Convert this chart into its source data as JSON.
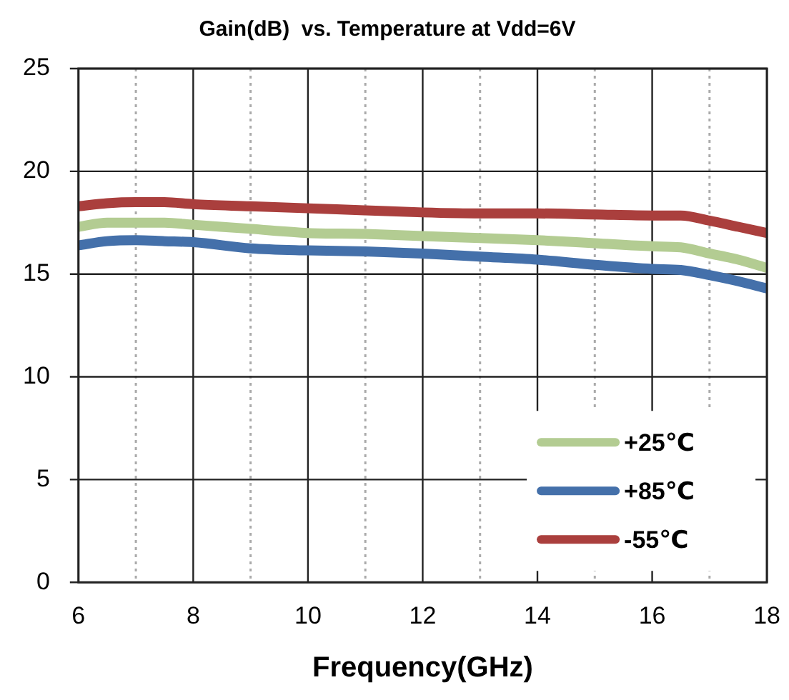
{
  "chart_data": {
    "type": "line",
    "title": "Gain(dB)  vs. Temperature at Vdd=6V",
    "xlabel": "Frequency(GHz)",
    "x": [
      6,
      6.5,
      7,
      7.5,
      8,
      9,
      10,
      11,
      12,
      13,
      14,
      15,
      16,
      16.5,
      17,
      17.5,
      18
    ],
    "series": [
      {
        "name": "+25℃",
        "color": "#b3cc92",
        "values": [
          17.3,
          17.5,
          17.5,
          17.5,
          17.4,
          17.2,
          17.0,
          16.95,
          16.85,
          16.75,
          16.65,
          16.5,
          16.35,
          16.3,
          16.0,
          15.7,
          15.3
        ]
      },
      {
        "name": "+85℃",
        "color": "#4470aa",
        "values": [
          16.4,
          16.6,
          16.65,
          16.6,
          16.55,
          16.25,
          16.15,
          16.1,
          16.0,
          15.85,
          15.7,
          15.45,
          15.25,
          15.2,
          14.95,
          14.65,
          14.3
        ]
      },
      {
        "name": "-55℃",
        "color": "#aa3f3d",
        "values": [
          18.3,
          18.45,
          18.5,
          18.5,
          18.4,
          18.3,
          18.2,
          18.1,
          18.0,
          17.95,
          17.95,
          17.9,
          17.85,
          17.85,
          17.6,
          17.3,
          17.0
        ]
      }
    ],
    "xlim": [
      6,
      18
    ],
    "xticks": [
      6,
      {
        "value": 7,
        "label": null
      },
      8,
      {
        "value": 9,
        "label": null
      },
      10,
      {
        "value": 11,
        "label": null
      },
      12,
      {
        "value": 13,
        "label": null
      },
      14,
      {
        "value": 15,
        "label": null
      },
      16,
      {
        "value": 17,
        "label": null
      },
      18
    ],
    "ylim": [
      0,
      25
    ],
    "yticks": [
      0,
      5,
      10,
      15,
      20,
      25
    ],
    "grid": true,
    "legend": "bottom right",
    "marker": "none",
    "line_style": "solid"
  }
}
